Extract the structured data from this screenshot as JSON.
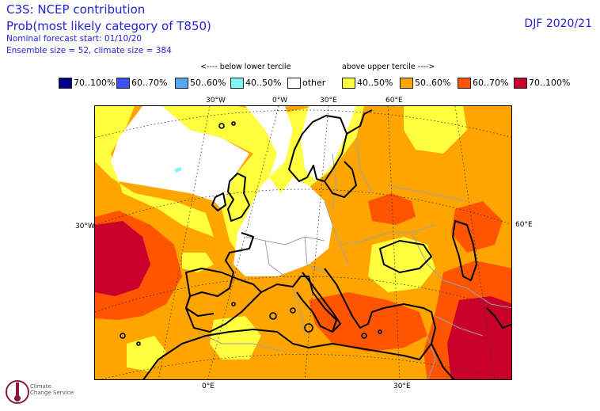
{
  "header": {
    "title": "C3S: NCEP contribution",
    "subtitle": "Prob(most likely category of T850)",
    "forecast_start": "Nominal forecast start: 01/10/20",
    "ensemble": "Ensemble size = 52, climate size = 384",
    "season": "DJF 2020/21"
  },
  "legend": {
    "below_label": "<---- below lower tercile",
    "above_label": "above upper tercile ---->",
    "items": [
      {
        "label": "70..100%",
        "color": "#00008b"
      },
      {
        "label": "60..70%",
        "color": "#3a50f0"
      },
      {
        "label": "50..60%",
        "color": "#55a8f5"
      },
      {
        "label": "40..50%",
        "color": "#7ff5f5"
      },
      {
        "label": "other",
        "color": "#ffffff"
      },
      {
        "label": "40..50%",
        "color": "#ffff40"
      },
      {
        "label": "50..60%",
        "color": "#ffa500"
      },
      {
        "label": "60..70%",
        "color": "#ff5500"
      },
      {
        "label": "70..100%",
        "color": "#c8002a"
      }
    ]
  },
  "axes": {
    "top": [
      "30°W",
      "0°W",
      "30°E",
      "60°E"
    ],
    "left": "30°W",
    "right": "60°E",
    "bottom": [
      "0°E",
      "30°E"
    ]
  },
  "logo": {
    "line1": "Climate",
    "line2": "Change Service"
  }
}
